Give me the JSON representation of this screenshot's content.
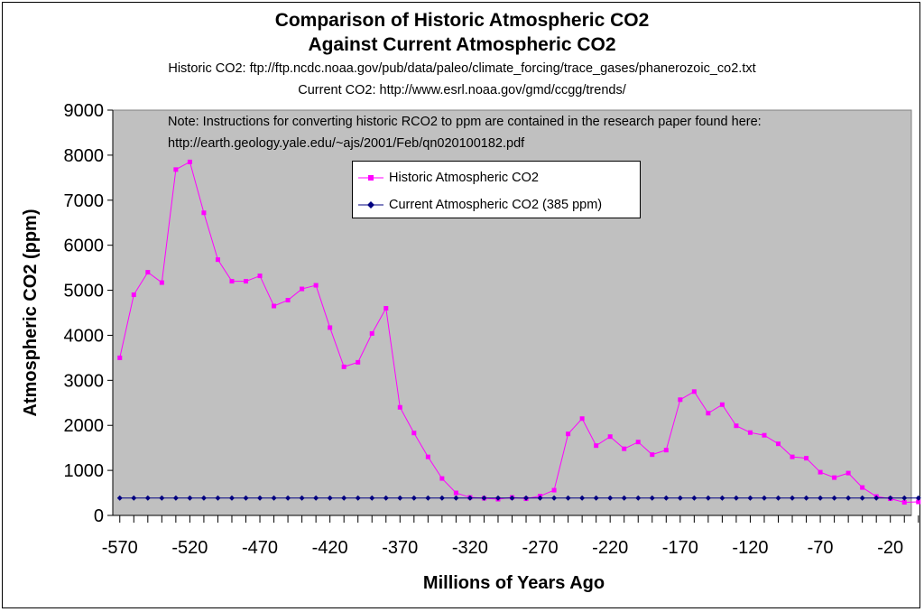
{
  "chart_data": {
    "type": "line",
    "title": "Comparison of Historic Atmospheric CO2",
    "title_line2": "Against Current Atmospheric CO2",
    "subtitle1": "Historic CO2: ftp://ftp.ncdc.noaa.gov/pub/data/paleo/climate_forcing/trace_gases/phanerozoic_co2.txt",
    "subtitle2": "Current CO2: http://www.esrl.noaa.gov/gmd/ccgg/trends/",
    "note_line1": "Note: Instructions for converting historic RCO2 to ppm are contained in the research paper found here:",
    "note_line2": "http://earth.geology.yale.edu/~ajs/2001/Feb/qn020100182.pdf",
    "xlabel": "Millions of Years Ago",
    "ylabel": "Atmospheric CO2 (ppm)",
    "xlim": [
      -575,
      -5
    ],
    "ylim": [
      0,
      9000
    ],
    "yticks": [
      0,
      1000,
      2000,
      3000,
      4000,
      5000,
      6000,
      7000,
      8000,
      9000
    ],
    "ytick_labels": [
      "0",
      "1000",
      "2000",
      "3000",
      "4000",
      "5000",
      "6000",
      "7000",
      "8000",
      "9000"
    ],
    "xtick_labels": [
      "-570",
      "-520",
      "-470",
      "-420",
      "-370",
      "-320",
      "-270",
      "-220",
      "-170",
      "-120",
      "-70",
      "-20"
    ],
    "xtick_values": [
      -570,
      -520,
      -470,
      -420,
      -370,
      -320,
      -270,
      -220,
      -170,
      -120,
      -70,
      -20
    ],
    "x": [
      -570,
      -560,
      -550,
      -540,
      -530,
      -520,
      -510,
      -500,
      -490,
      -480,
      -470,
      -460,
      -450,
      -440,
      -430,
      -420,
      -410,
      -400,
      -390,
      -380,
      -370,
      -360,
      -350,
      -340,
      -330,
      -320,
      -310,
      -300,
      -290,
      -280,
      -270,
      -260,
      -250,
      -240,
      -230,
      -220,
      -210,
      -200,
      -190,
      -180,
      -170,
      -160,
      -150,
      -140,
      -130,
      -120,
      -110,
      -100,
      -90,
      -80,
      -70,
      -60,
      -50,
      -40,
      -30,
      -20,
      -10,
      0
    ],
    "series": [
      {
        "name": "Historic Atmospheric CO2",
        "color": "#ff00ff",
        "values": [
          3500,
          4900,
          5400,
          5170,
          7680,
          7850,
          6720,
          5680,
          5200,
          5200,
          5320,
          4650,
          4780,
          5030,
          5110,
          4170,
          3300,
          3400,
          4040,
          4600,
          2400,
          1830,
          1300,
          820,
          500,
          400,
          380,
          360,
          400,
          370,
          430,
          560,
          1810,
          2150,
          1550,
          1750,
          1480,
          1630,
          1350,
          1450,
          2570,
          2750,
          2270,
          2460,
          1990,
          1840,
          1780,
          1590,
          1300,
          1270,
          960,
          840,
          940,
          620,
          420,
          370,
          290,
          300
        ]
      },
      {
        "name": "Current Atmospheric CO2 (385 ppm)",
        "color": "#000080",
        "values": [
          385,
          385,
          385,
          385,
          385,
          385,
          385,
          385,
          385,
          385,
          385,
          385,
          385,
          385,
          385,
          385,
          385,
          385,
          385,
          385,
          385,
          385,
          385,
          385,
          385,
          385,
          385,
          385,
          385,
          385,
          385,
          385,
          385,
          385,
          385,
          385,
          385,
          385,
          385,
          385,
          385,
          385,
          385,
          385,
          385,
          385,
          385,
          385,
          385,
          385,
          385,
          385,
          385,
          385,
          385,
          385,
          385,
          385
        ]
      }
    ],
    "legend": [
      "Historic Atmospheric CO2",
      "Current Atmospheric CO2 (385 ppm)"
    ],
    "plot_background": "#c0c0c0",
    "grid": false
  }
}
